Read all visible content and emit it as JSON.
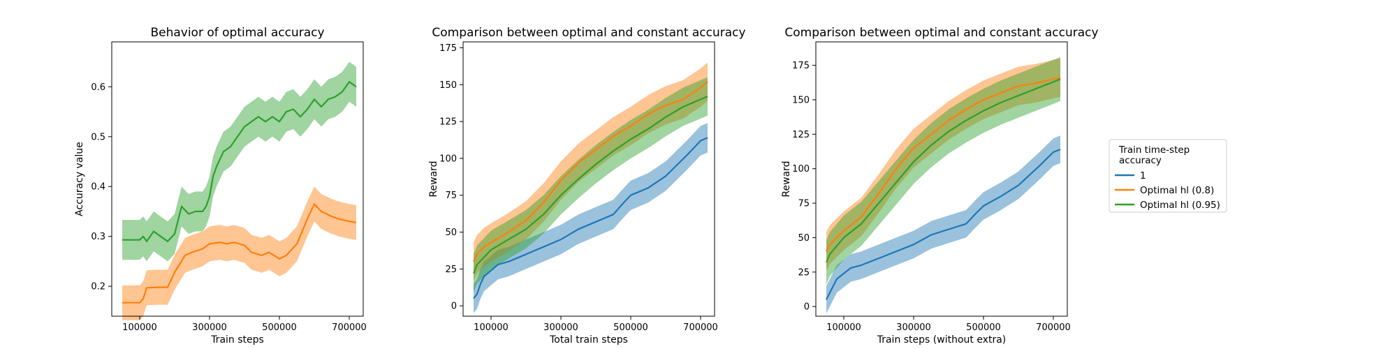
{
  "chart_data": [
    {
      "type": "line",
      "title": "Behavior of optimal accuracy",
      "xlabel": "Train steps",
      "ylabel": "Accuracy value",
      "xlim": [
        20000,
        740000
      ],
      "ylim": [
        0.14,
        0.69
      ],
      "xticks": [
        100000,
        300000,
        500000,
        700000
      ],
      "yticks": [
        0.2,
        0.3,
        0.4,
        0.5,
        0.6
      ],
      "shaded_band": true,
      "series": [
        {
          "name": "Optimal hl (0.8)",
          "color": "#ff7f0e",
          "x": [
            50000,
            80000,
            100000,
            110000,
            120000,
            150000,
            180000,
            200000,
            230000,
            250000,
            280000,
            300000,
            330000,
            350000,
            370000,
            400000,
            420000,
            450000,
            470000,
            500000,
            520000,
            550000,
            580000,
            600000,
            620000,
            650000,
            670000,
            700000,
            720000
          ],
          "y": [
            0.167,
            0.167,
            0.167,
            0.175,
            0.197,
            0.198,
            0.198,
            0.228,
            0.262,
            0.268,
            0.275,
            0.285,
            0.288,
            0.285,
            0.288,
            0.282,
            0.268,
            0.262,
            0.268,
            0.255,
            0.262,
            0.285,
            0.335,
            0.365,
            0.35,
            0.34,
            0.335,
            0.33,
            0.328
          ],
          "band": 0.035
        },
        {
          "name": "Optimal hl (0.95)",
          "color": "#2ca02c",
          "x": [
            50000,
            80000,
            100000,
            110000,
            120000,
            140000,
            160000,
            180000,
            200000,
            220000,
            240000,
            260000,
            280000,
            290000,
            300000,
            310000,
            320000,
            340000,
            360000,
            380000,
            400000,
            420000,
            440000,
            460000,
            480000,
            500000,
            520000,
            540000,
            560000,
            580000,
            600000,
            620000,
            640000,
            660000,
            680000,
            700000,
            720000
          ],
          "y": [
            0.293,
            0.293,
            0.293,
            0.3,
            0.29,
            0.31,
            0.3,
            0.29,
            0.305,
            0.36,
            0.345,
            0.35,
            0.35,
            0.36,
            0.38,
            0.42,
            0.44,
            0.47,
            0.48,
            0.5,
            0.52,
            0.53,
            0.54,
            0.53,
            0.54,
            0.53,
            0.55,
            0.555,
            0.54,
            0.555,
            0.575,
            0.56,
            0.575,
            0.58,
            0.59,
            0.61,
            0.6
          ],
          "band": 0.04
        }
      ]
    },
    {
      "type": "line",
      "title": "Comparison between optimal and constant accuracy",
      "xlabel": "Total train steps",
      "ylabel": "Reward",
      "xlim": [
        20000,
        740000
      ],
      "ylim": [
        -7,
        179
      ],
      "xticks": [
        100000,
        300000,
        500000,
        700000
      ],
      "yticks": [
        0,
        25,
        50,
        75,
        100,
        125,
        150,
        175
      ],
      "shaded_band": true,
      "series": [
        {
          "name": "1",
          "color": "#1f77b4",
          "x": [
            50000,
            60000,
            70000,
            80000,
            100000,
            120000,
            150000,
            200000,
            250000,
            300000,
            350000,
            400000,
            450000,
            480000,
            500000,
            550000,
            600000,
            630000,
            660000,
            700000,
            720000
          ],
          "y": [
            5,
            8,
            15,
            20,
            24,
            28,
            30,
            35,
            40,
            45,
            52,
            57,
            62,
            70,
            75,
            80,
            88,
            95,
            102,
            112,
            114
          ],
          "band": 10
        },
        {
          "name": "Optimal hl (0.8)",
          "color": "#ff7f0e",
          "x": [
            50000,
            60000,
            80000,
            100000,
            150000,
            200000,
            250000,
            300000,
            350000,
            400000,
            450000,
            500000,
            550000,
            600000,
            650000,
            700000,
            720000
          ],
          "y": [
            30,
            35,
            40,
            43,
            50,
            58,
            70,
            85,
            97,
            106,
            115,
            122,
            130,
            136,
            140,
            148,
            152
          ],
          "band": 13
        },
        {
          "name": "Optimal hl (0.95)",
          "color": "#2ca02c",
          "x": [
            50000,
            60000,
            80000,
            100000,
            150000,
            200000,
            250000,
            300000,
            350000,
            400000,
            450000,
            500000,
            550000,
            600000,
            650000,
            700000,
            720000
          ],
          "y": [
            22,
            28,
            33,
            38,
            45,
            52,
            62,
            75,
            86,
            96,
            105,
            113,
            120,
            128,
            135,
            140,
            142
          ],
          "band": 13
        }
      ]
    },
    {
      "type": "line",
      "title": "Comparison between optimal and constant accuracy",
      "xlabel": "Train steps (without extra)",
      "ylabel": "Reward",
      "xlim": [
        20000,
        740000
      ],
      "ylim": [
        -7,
        192
      ],
      "xticks": [
        100000,
        300000,
        500000,
        700000
      ],
      "yticks": [
        0,
        25,
        50,
        75,
        100,
        125,
        150,
        175
      ],
      "shaded_band": true,
      "series": [
        {
          "name": "1",
          "color": "#1f77b4",
          "x": [
            50000,
            60000,
            70000,
            80000,
            100000,
            120000,
            150000,
            200000,
            250000,
            300000,
            350000,
            400000,
            450000,
            480000,
            500000,
            550000,
            600000,
            630000,
            660000,
            700000,
            720000
          ],
          "y": [
            5,
            10,
            15,
            20,
            24,
            28,
            30,
            35,
            40,
            45,
            52,
            56,
            60,
            68,
            73,
            80,
            88,
            95,
            102,
            112,
            114
          ],
          "band": 10
        },
        {
          "name": "Optimal hl (0.8)",
          "color": "#ff7f0e",
          "x": [
            50000,
            60000,
            80000,
            100000,
            150000,
            200000,
            250000,
            300000,
            350000,
            400000,
            450000,
            500000,
            550000,
            600000,
            650000,
            700000,
            720000
          ],
          "y": [
            40,
            45,
            50,
            55,
            65,
            82,
            100,
            115,
            125,
            135,
            143,
            150,
            155,
            160,
            162,
            165,
            166
          ],
          "band": 14
        },
        {
          "name": "Optimal hl (0.95)",
          "color": "#2ca02c",
          "x": [
            50000,
            60000,
            80000,
            100000,
            150000,
            200000,
            250000,
            300000,
            350000,
            400000,
            450000,
            500000,
            550000,
            600000,
            650000,
            700000,
            720000
          ],
          "y": [
            32,
            38,
            44,
            50,
            60,
            75,
            90,
            105,
            117,
            127,
            135,
            142,
            148,
            153,
            158,
            163,
            165
          ],
          "band": 16
        }
      ]
    }
  ],
  "legend": {
    "title_lines": [
      "Train time-step",
      " accuracy"
    ],
    "placement": "right of third chart, center",
    "entries": [
      {
        "label": "1",
        "color": "#1f77b4"
      },
      {
        "label": "Optimal hl (0.8)",
        "color": "#ff7f0e"
      },
      {
        "label": "Optimal hl (0.95)",
        "color": "#2ca02c"
      }
    ]
  }
}
